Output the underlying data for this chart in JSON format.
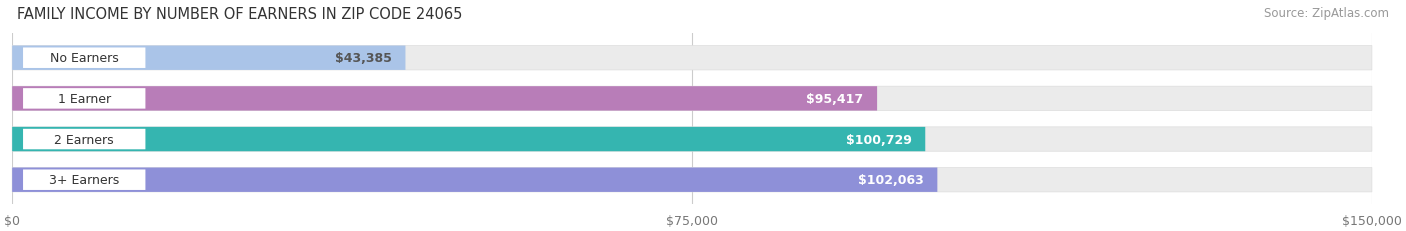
{
  "title": "FAMILY INCOME BY NUMBER OF EARNERS IN ZIP CODE 24065",
  "source": "Source: ZipAtlas.com",
  "categories": [
    "No Earners",
    "1 Earner",
    "2 Earners",
    "3+ Earners"
  ],
  "values": [
    43385,
    95417,
    100729,
    102063
  ],
  "bar_colors": [
    "#aac4e8",
    "#b87db8",
    "#35b5b0",
    "#8e90d8"
  ],
  "bar_labels": [
    "$43,385",
    "$95,417",
    "$100,729",
    "$102,063"
  ],
  "label_text_colors": [
    "#555555",
    "#ffffff",
    "#ffffff",
    "#ffffff"
  ],
  "xlim": [
    0,
    150000
  ],
  "xticks": [
    0,
    75000,
    150000
  ],
  "xtick_labels": [
    "$0",
    "$75,000",
    "$150,000"
  ],
  "bar_bg_color": "#ebebeb",
  "label_bg_color": "#ffffff",
  "title_fontsize": 10.5,
  "source_fontsize": 8.5,
  "cat_fontsize": 9,
  "val_fontsize": 9,
  "bar_height": 0.6,
  "fig_width": 14.06,
  "fig_height": 2.32
}
